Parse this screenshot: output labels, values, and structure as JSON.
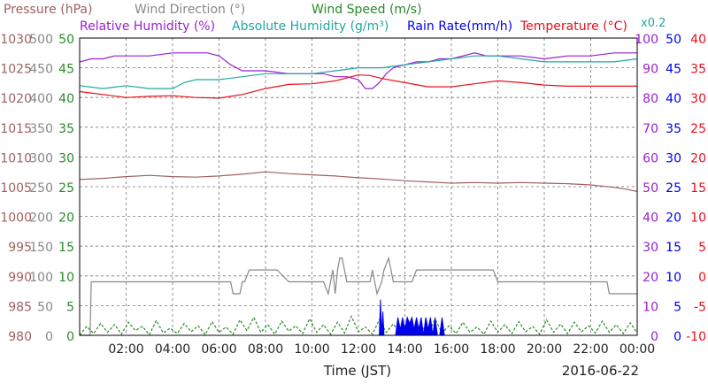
{
  "chart_data": {
    "type": "line",
    "title_lines": [
      [
        {
          "text": "Pressure (hPa)",
          "color": "#a06060"
        },
        {
          "text": "Wind Direction (°)",
          "color": "#888888"
        },
        {
          "text": "Wind Speed (m/s)",
          "color": "#2a8a2a"
        }
      ],
      [
        {
          "text": "Relative Humidity (%)",
          "color": "#9a20d0"
        },
        {
          "text": "Absolute Humidity (g/m³)",
          "color": "#20a8a0"
        },
        {
          "text": "Rain Rate(mm/h)",
          "color": "#0000ee"
        },
        {
          "text": "Temperature (°C)",
          "color": "#e8101a"
        }
      ]
    ],
    "scale_note": "x0.2",
    "scale_note_color": "#20a8a0",
    "xlabel": "Time (JST)",
    "date": "2016-06-22",
    "xlim": [
      0,
      24
    ],
    "x_ticks": [
      "02:00",
      "04:00",
      "06:00",
      "08:00",
      "10:00",
      "12:00",
      "14:00",
      "16:00",
      "18:00",
      "20:00",
      "22:00",
      "00:00"
    ],
    "axes": {
      "pressure": {
        "color": "#a06060",
        "ylim": [
          980,
          1030
        ],
        "labels": [
          "980",
          "985",
          "990",
          "995",
          "1000",
          "1005",
          "1010",
          "1015",
          "1020",
          "1025",
          "1030"
        ]
      },
      "wind_direction": {
        "color": "#888888",
        "ylim": [
          0,
          500
        ],
        "labels": [
          "0",
          "50",
          "100",
          "150",
          "200",
          "250",
          "300",
          "350",
          "400",
          "450",
          "500"
        ]
      },
      "wind_speed": {
        "color": "#2a8a2a",
        "ylim": [
          0,
          50
        ],
        "labels": [
          "0",
          "5",
          "10",
          "15",
          "20",
          "25",
          "30",
          "35",
          "40",
          "45",
          "50"
        ]
      },
      "humidity": {
        "color": "#9a20d0",
        "ylim": [
          0,
          100
        ],
        "labels": [
          "0",
          "10",
          "20",
          "30",
          "40",
          "50",
          "60",
          "70",
          "80",
          "90",
          "100"
        ]
      },
      "rain_rate": {
        "color": "#0000ee",
        "ylim": [
          0,
          50
        ],
        "labels": [
          "0",
          "5",
          "10",
          "15",
          "20",
          "25",
          "30",
          "35",
          "40",
          "45",
          "50"
        ]
      },
      "temperature": {
        "color": "#e8101a",
        "ylim": [
          -10,
          40
        ],
        "labels": [
          "-10",
          "-5",
          "0",
          "5",
          "10",
          "15",
          "20",
          "25",
          "30",
          "35",
          "40"
        ]
      }
    },
    "series": [
      {
        "name": "Relative Humidity (%)",
        "axis": "humidity",
        "color": "#9a20d0",
        "x": [
          0,
          0.5,
          1,
          1.5,
          2,
          3,
          4,
          5,
          5.5,
          6,
          6.5,
          7,
          8,
          9,
          10,
          10.5,
          11,
          11.5,
          12,
          12.3,
          12.6,
          12.9,
          13.2,
          13.5,
          14,
          14.5,
          15,
          15.5,
          16,
          16.5,
          17,
          17.5,
          18,
          19,
          20,
          21,
          22,
          23,
          24
        ],
        "y": [
          92,
          93,
          93,
          94,
          94,
          94,
          95,
          95,
          95,
          94,
          91,
          89,
          89,
          88,
          88,
          88,
          87,
          87,
          86,
          83,
          83,
          85,
          88,
          90,
          91,
          92,
          92,
          93,
          93,
          94,
          95,
          94,
          94,
          94,
          93,
          94,
          94,
          95,
          95
        ]
      },
      {
        "name": "Absolute Humidity (g/m³)",
        "axis": "humidity",
        "color": "#20a8a0",
        "x": [
          0,
          1,
          2,
          3,
          4,
          4.5,
          5,
          6,
          7,
          8,
          9,
          10,
          11,
          12,
          13,
          14,
          15,
          16,
          17,
          17.5,
          18,
          19,
          20,
          21,
          22,
          23,
          24
        ],
        "y": [
          84,
          83,
          84,
          83,
          83,
          85,
          86,
          86,
          87,
          88,
          88,
          88,
          89,
          90,
          90,
          91,
          92,
          93,
          94,
          94,
          94,
          93,
          92,
          92,
          92,
          92,
          93
        ]
      },
      {
        "name": "Temperature (°C)",
        "axis": "temperature",
        "color": "#e8101a",
        "x": [
          0,
          1,
          2,
          3,
          4,
          5,
          6,
          7,
          8,
          9,
          10,
          11,
          11.5,
          12,
          12.5,
          13,
          14,
          15,
          16,
          17,
          18,
          19,
          20,
          21,
          22,
          23,
          24
        ],
        "y": [
          31,
          30.5,
          30,
          30.2,
          30.3,
          30,
          29.9,
          30.5,
          31.5,
          32.2,
          32.3,
          32.8,
          33.3,
          33.8,
          33.7,
          33.2,
          32.5,
          31.8,
          31.8,
          32.3,
          32.8,
          32.5,
          32.1,
          31.9,
          31.9,
          31.9,
          31.9
        ]
      },
      {
        "name": "Pressure (hPa)",
        "axis": "pressure",
        "color": "#a06060",
        "x": [
          0,
          1,
          2,
          3,
          4,
          5,
          6,
          7,
          8,
          9,
          10,
          11,
          12,
          13,
          14,
          15,
          16,
          17,
          18,
          19,
          20,
          21,
          22,
          22.5,
          23,
          23.5,
          24
        ],
        "y": [
          1006.2,
          1006.4,
          1006.7,
          1006.9,
          1006.7,
          1006.6,
          1006.8,
          1007.1,
          1007.5,
          1007.2,
          1007.0,
          1006.8,
          1006.5,
          1006.3,
          1006.0,
          1005.8,
          1005.6,
          1005.7,
          1005.6,
          1005.7,
          1005.6,
          1005.5,
          1005.3,
          1005.1,
          1004.9,
          1004.6,
          1004.2
        ]
      },
      {
        "name": "Wind Direction (°)",
        "axis": "wind_direction",
        "color": "#888888",
        "x": [
          0,
          0.45,
          0.5,
          6.5,
          6.6,
          6.9,
          7.0,
          7.1,
          7.3,
          7.4,
          8.5,
          9.0,
          10.0,
          10.5,
          10.7,
          10.8,
          10.9,
          11.0,
          11.1,
          11.2,
          11.3,
          11.5,
          11.8,
          12.0,
          12.4,
          12.5,
          12.6,
          12.7,
          12.8,
          13.0,
          13.1,
          13.3,
          13.4,
          13.5,
          14.3,
          14.5,
          17.8,
          18.0,
          22.7,
          22.8,
          23.7,
          24
        ],
        "y": [
          0,
          0,
          90,
          90,
          70,
          70,
          90,
          90,
          110,
          110,
          110,
          90,
          90,
          90,
          70,
          90,
          110,
          70,
          110,
          130,
          130,
          90,
          90,
          90,
          90,
          90,
          110,
          90,
          70,
          90,
          110,
          130,
          110,
          90,
          90,
          110,
          110,
          90,
          90,
          70,
          70,
          70
        ]
      },
      {
        "name": "Wind Speed (m/s)",
        "axis": "wind_speed",
        "color": "#2a8a2a",
        "dashed": true,
        "x": [
          0,
          0.3,
          0.6,
          0.9,
          1.2,
          1.5,
          1.8,
          2.1,
          2.4,
          2.7,
          3.0,
          3.3,
          3.6,
          3.9,
          4.2,
          4.5,
          4.8,
          5.1,
          5.4,
          5.7,
          6.0,
          6.3,
          6.6,
          6.9,
          7.2,
          7.5,
          7.8,
          8.1,
          8.4,
          8.7,
          9.0,
          9.3,
          9.6,
          9.9,
          10.2,
          10.5,
          10.8,
          11.1,
          11.4,
          11.7,
          12.0,
          12.3,
          12.6,
          12.9,
          13.2,
          13.5,
          13.8,
          14.1,
          14.4,
          14.7,
          15.0,
          15.3,
          15.6,
          15.9,
          16.2,
          16.5,
          16.8,
          17.1,
          17.4,
          17.7,
          18.0,
          18.3,
          18.6,
          18.9,
          19.2,
          19.5,
          19.8,
          20.1,
          20.4,
          20.7,
          21.0,
          21.3,
          21.6,
          21.9,
          22.2,
          22.5,
          22.8,
          23.1,
          23.4,
          23.7,
          24.0
        ],
        "y": [
          0,
          1.5,
          0.3,
          2,
          0.5,
          1.8,
          0.2,
          2.2,
          0.8,
          1.5,
          0.1,
          2.5,
          0.4,
          1.2,
          0.3,
          2,
          0.6,
          1.6,
          0.1,
          2.3,
          0.5,
          1.4,
          0.2,
          2.6,
          0.8,
          3,
          0.5,
          1.8,
          0.2,
          2.4,
          0.7,
          1.6,
          0.3,
          2.8,
          0.5,
          1.8,
          0.2,
          2.2,
          0.4,
          3.2,
          0.6,
          1.4,
          0.2,
          2.6,
          0.5,
          1.9,
          0.3,
          2.4,
          0.6,
          1.6,
          0.2,
          2.7,
          0.4,
          1.6,
          0.3,
          2.2,
          0.5,
          1.4,
          0.2,
          2.4,
          0.5,
          1.8,
          0.3,
          2.3,
          0.6,
          1.5,
          0.2,
          2.6,
          0.5,
          1.9,
          0.3,
          2.2,
          0.6,
          1.6,
          0.4,
          2.4,
          0.5,
          1.8,
          0.3,
          2.1,
          0.4
        ]
      },
      {
        "name": "Rain Rate(mm/h)",
        "axis": "rain_rate",
        "color": "#0000ee",
        "filled": true,
        "x": [
          12.9,
          12.95,
          13.0,
          13.05,
          13.1,
          13.6,
          13.7,
          13.8,
          13.9,
          14.0,
          14.1,
          14.2,
          14.3,
          14.4,
          14.5,
          14.6,
          14.7,
          14.8,
          14.9,
          15.0,
          15.1,
          15.2,
          15.3,
          15.4,
          15.5,
          15.6,
          15.7,
          15.8
        ],
        "y": [
          0,
          6,
          0,
          4,
          0,
          0,
          3,
          1,
          3,
          1,
          3,
          2,
          3,
          1,
          3,
          1,
          3,
          0,
          3,
          1,
          3,
          0,
          3,
          0,
          0,
          3,
          0,
          0
        ]
      }
    ]
  }
}
